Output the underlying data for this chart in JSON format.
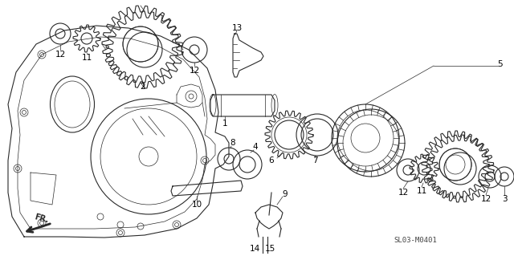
{
  "background_color": "#ffffff",
  "line_color": "#2a2a2a",
  "label_color": "#000000",
  "diagram_code": "SL03-M0401",
  "fr_label": "FR.",
  "figsize": [
    6.4,
    3.19
  ],
  "dpi": 100
}
